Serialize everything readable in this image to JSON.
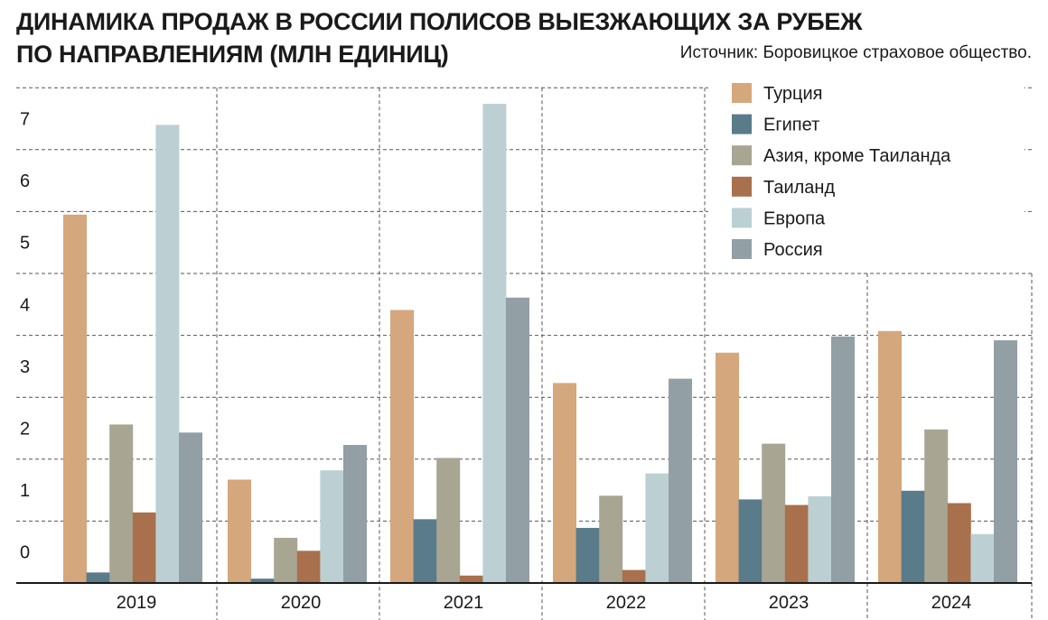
{
  "title_line1": "ДИНАМИКА ПРОДАЖ В РОССИИ ПОЛИСОВ ВЫЕЗЖАЮЩИХ ЗА РУБЕЖ",
  "title_line2": "ПО НАПРАВЛЕНИЯМ (МЛН ЕДИНИЦ)",
  "source": "Источник: Боровицкое страховое общество.",
  "chart_data": {
    "type": "bar",
    "title": "ДИНАМИКА ПРОДАЖ В РОССИИ ПОЛИСОВ ВЫЕЗЖАЮЩИХ ЗА РУБЕЖ ПО НАПРАВЛЕНИЯМ (МЛН ЕДИНИЦ)",
    "categories": [
      "2019",
      "2020",
      "2021",
      "2022",
      "2023",
      "2024"
    ],
    "yticks": [
      "0",
      "1",
      "2",
      "3",
      "4",
      "5",
      "6",
      "7"
    ],
    "ylim": [
      0,
      8
    ],
    "grid": true,
    "legend_position": "top-right",
    "series": [
      {
        "name": "Турция",
        "color": "#d4a77c",
        "values": [
          5.95,
          1.67,
          4.41,
          3.23,
          3.72,
          4.07
        ]
      },
      {
        "name": "Египет",
        "color": "#5a7b8a",
        "values": [
          0.17,
          0.07,
          1.03,
          0.89,
          1.35,
          1.49
        ]
      },
      {
        "name": "Азия, кроме Таиланда",
        "color": "#a8a593",
        "values": [
          2.56,
          0.73,
          2.02,
          1.41,
          2.25,
          2.48
        ]
      },
      {
        "name": "Таиланд",
        "color": "#a8704d",
        "values": [
          1.14,
          0.52,
          0.12,
          0.21,
          1.26,
          1.29
        ]
      },
      {
        "name": "Европа",
        "color": "#bcd0d3",
        "values": [
          7.4,
          1.82,
          7.74,
          1.77,
          1.4,
          0.79
        ]
      },
      {
        "name": "Россия",
        "color": "#929fa5",
        "values": [
          2.43,
          2.23,
          4.61,
          3.3,
          3.98,
          3.92
        ]
      }
    ]
  }
}
